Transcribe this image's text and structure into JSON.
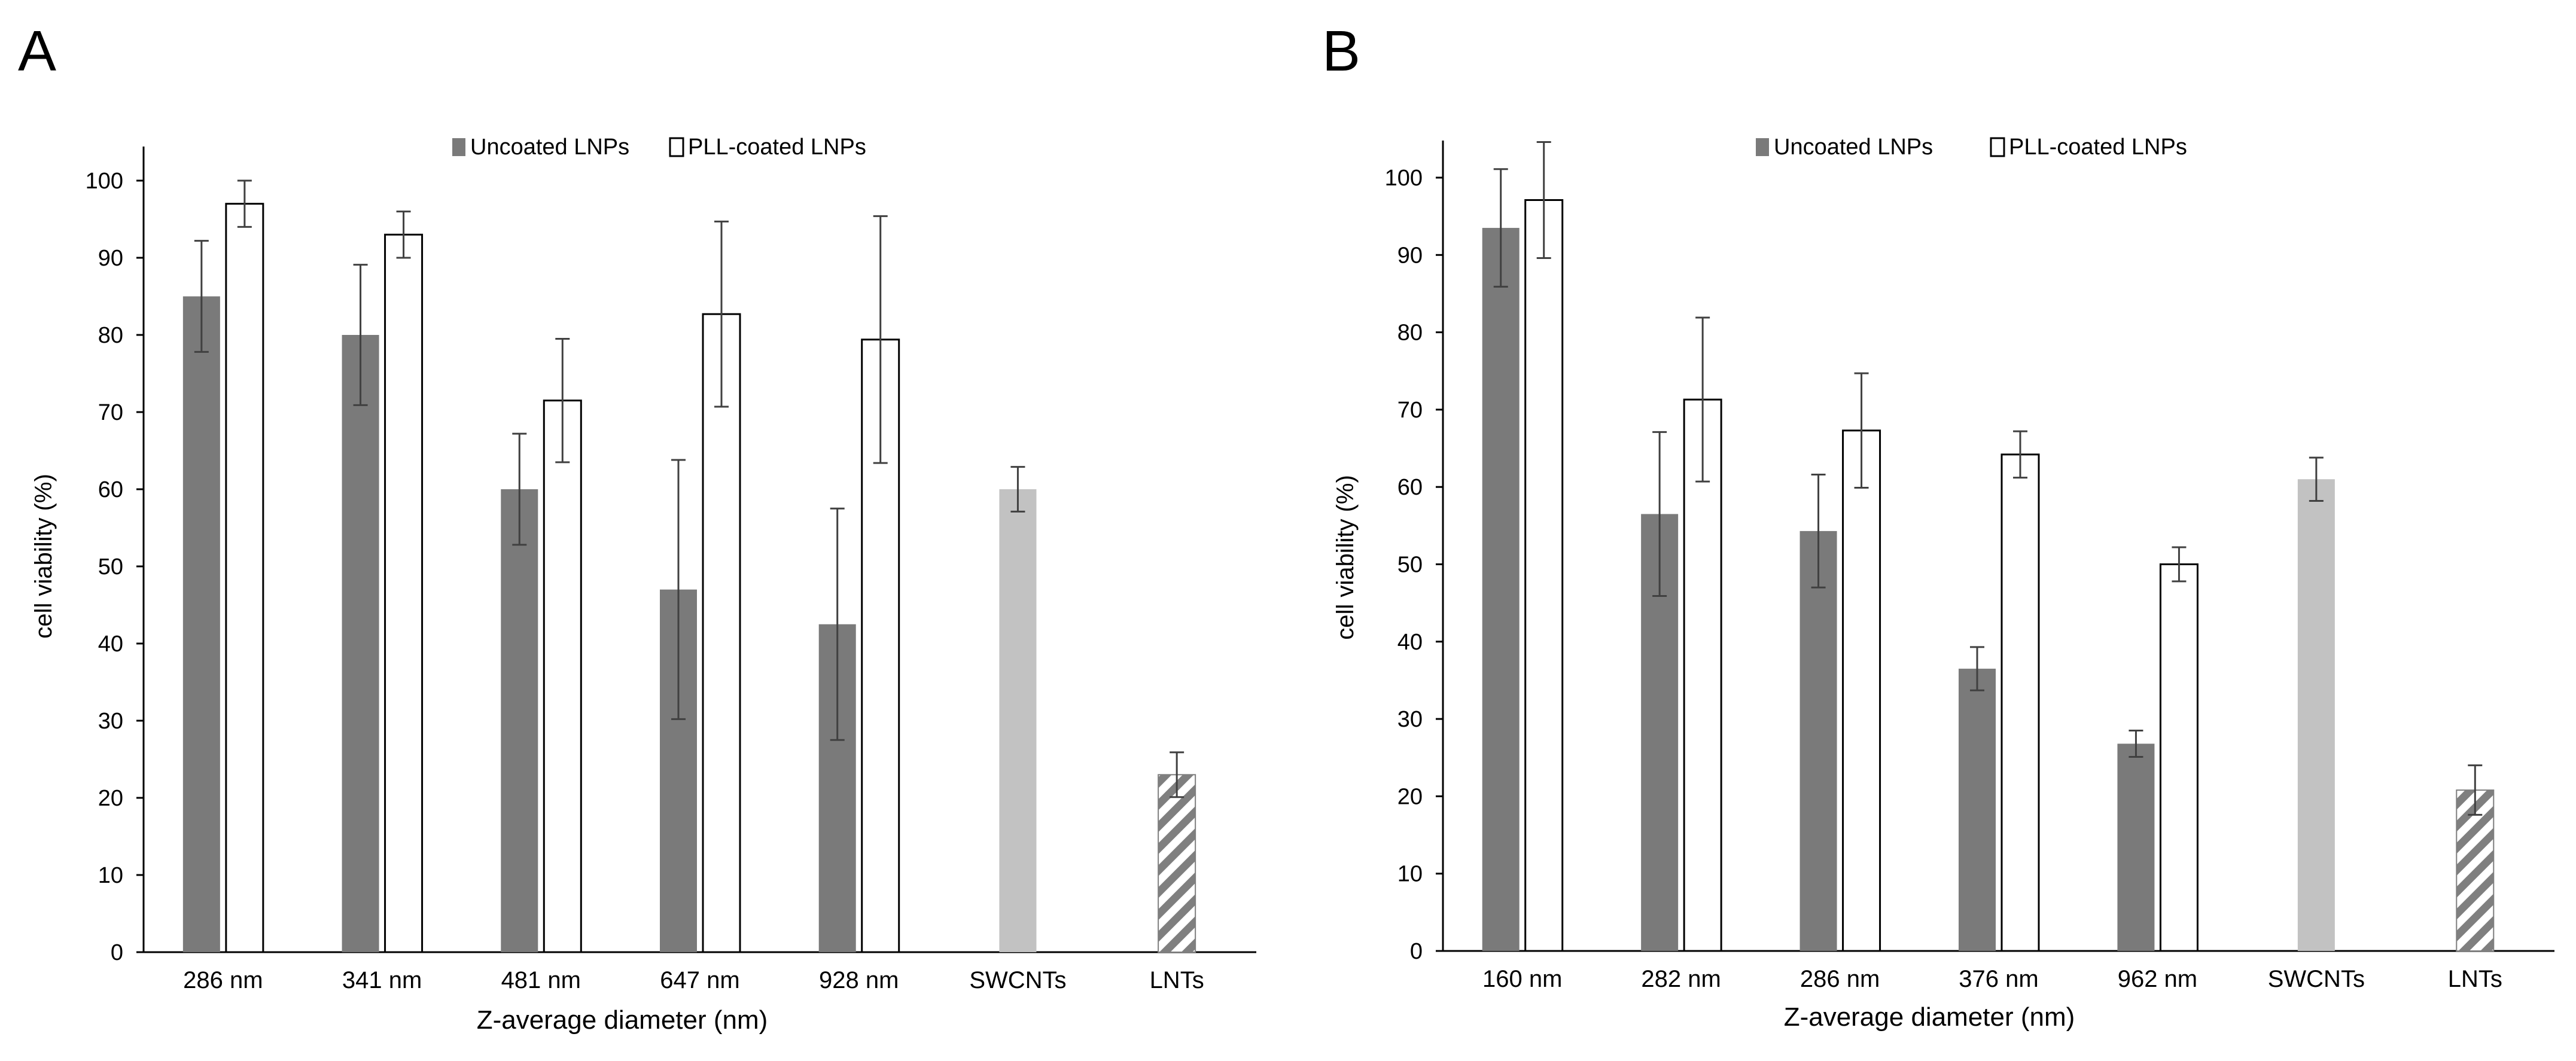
{
  "figure": {
    "panel_labels": [
      "A",
      "B"
    ]
  },
  "colors": {
    "uncoated": "#7a7a7a",
    "coated_fill": "#ffffff",
    "coated_stroke": "#000000",
    "swcnt": "#c2c2c2",
    "lnt_hatch": "#7f7f7f",
    "axis": "#000000",
    "errorbar": "#404040"
  },
  "chart_data": [
    {
      "panel": "A",
      "type": "bar",
      "title": "",
      "xlabel": "Z-average diameter (nm)",
      "ylabel": "cell viability  (%)",
      "ylim": [
        0,
        100
      ],
      "yticks": [
        0,
        10,
        20,
        30,
        40,
        50,
        60,
        70,
        80,
        90,
        100
      ],
      "grid": false,
      "legend": {
        "position": "top",
        "entries": [
          "Uncoated LNPs",
          "PLL-coated LNPs"
        ]
      },
      "categories": [
        "286 nm",
        "341 nm",
        "481 nm",
        "647 nm",
        "928 nm",
        "SWCNTs",
        "LNTs"
      ],
      "series": [
        {
          "name": "Uncoated LNPs",
          "style": "uncoated",
          "values": [
            85,
            80,
            60,
            47,
            42.5,
            null,
            null
          ],
          "errors": [
            7.2,
            9.1,
            7.2,
            16.8,
            15.0,
            null,
            null
          ]
        },
        {
          "name": "PLL-coated LNPs",
          "style": "coated",
          "values": [
            97,
            93,
            71.5,
            82.7,
            79.4,
            null,
            null
          ],
          "errors": [
            3.0,
            3.0,
            8.0,
            12.0,
            16.0,
            null,
            null
          ]
        },
        {
          "name": "SWCNTs",
          "style": "swcnt",
          "values": [
            null,
            null,
            null,
            null,
            null,
            60,
            null
          ],
          "errors": [
            null,
            null,
            null,
            null,
            null,
            2.9,
            null
          ]
        },
        {
          "name": "LNTs",
          "style": "lnt",
          "values": [
            null,
            null,
            null,
            null,
            null,
            null,
            23
          ],
          "errors": [
            null,
            null,
            null,
            null,
            null,
            null,
            2.9
          ]
        }
      ]
    },
    {
      "panel": "B",
      "type": "bar",
      "title": "",
      "xlabel": "Z-average diameter (nm)",
      "ylabel": "cell viability (%)",
      "ylim": [
        0,
        100
      ],
      "yticks": [
        0,
        10,
        20,
        30,
        40,
        50,
        60,
        70,
        80,
        90,
        100
      ],
      "grid": false,
      "legend": {
        "position": "top",
        "entries": [
          "Uncoated LNPs",
          "PLL-coated LNPs"
        ]
      },
      "categories": [
        "160 nm",
        "282 nm",
        "286 nm",
        "376 nm",
        "962 nm",
        "SWCNTs",
        "LNTs"
      ],
      "series": [
        {
          "name": "Uncoated LNPs",
          "style": "uncoated",
          "values": [
            93.5,
            56.5,
            54.3,
            36.5,
            26.8,
            null,
            null
          ],
          "errors": [
            7.6,
            10.6,
            7.3,
            2.8,
            1.7,
            null,
            null
          ]
        },
        {
          "name": "PLL-coated LNPs",
          "style": "coated",
          "values": [
            97.1,
            71.3,
            67.3,
            64.2,
            50,
            null,
            null
          ],
          "errors": [
            7.5,
            10.6,
            7.4,
            3.0,
            2.2,
            null,
            null
          ]
        },
        {
          "name": "SWCNTs",
          "style": "swcnt",
          "values": [
            null,
            null,
            null,
            null,
            null,
            61,
            null
          ],
          "errors": [
            null,
            null,
            null,
            null,
            null,
            2.8,
            null
          ]
        },
        {
          "name": "LNTs",
          "style": "lnt",
          "values": [
            null,
            null,
            null,
            null,
            null,
            null,
            20.8
          ],
          "errors": [
            null,
            null,
            null,
            null,
            null,
            null,
            3.2
          ]
        }
      ]
    }
  ]
}
